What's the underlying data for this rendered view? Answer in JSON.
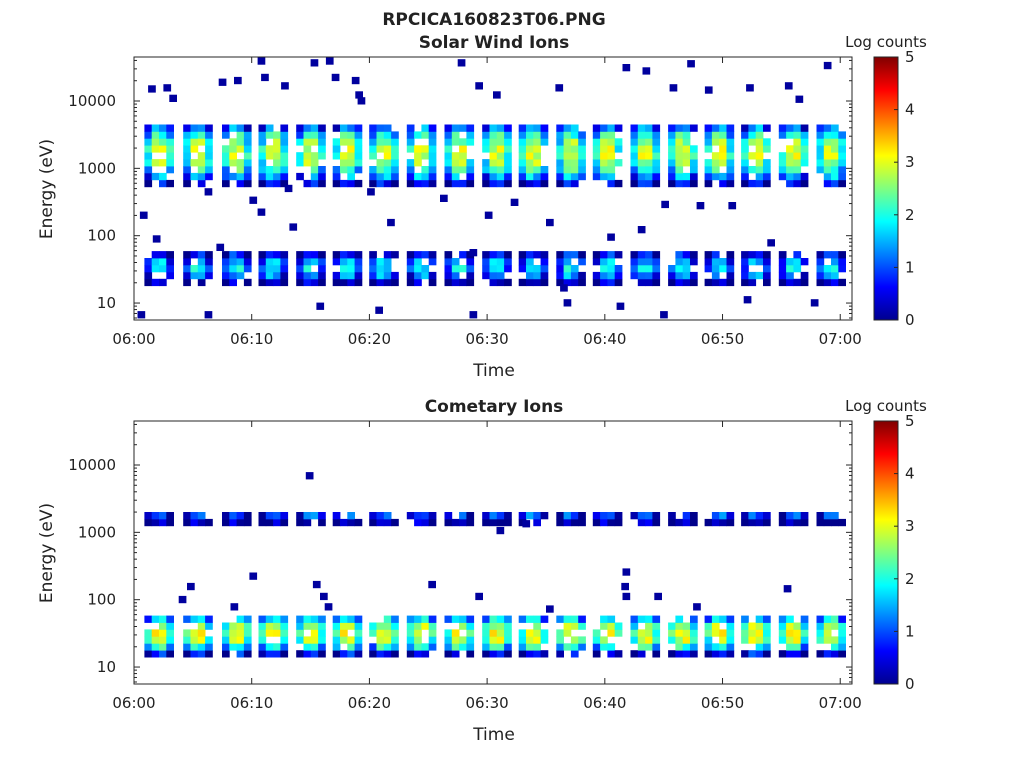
{
  "figure": {
    "main_title": "RPCICA160823T06.PNG",
    "colorbar_label": "Log counts",
    "colorbar_ticks": [
      "0",
      "1",
      "2",
      "3",
      "4",
      "5"
    ]
  },
  "chart_data": [
    {
      "type": "heatmap",
      "title": "Solar Wind Ions",
      "xlabel": "Time",
      "ylabel": "Energy (eV)",
      "x_tick_labels": [
        "06:00",
        "06:10",
        "06:20",
        "06:30",
        "06:40",
        "06:50",
        "07:00"
      ],
      "y_tick_labels": [
        "10",
        "100",
        "1000",
        "10000"
      ],
      "x_range_minutes": [
        0,
        61
      ],
      "y_range_ev": [
        5.6,
        45000
      ],
      "y_scale": "log",
      "color_range_log_counts": [
        0,
        5
      ],
      "colormap": "jet",
      "sweep_times_min": [
        1.5,
        4.8,
        8.1,
        11.2,
        14.4,
        17.5,
        20.6,
        23.8,
        27.0,
        30.2,
        33.3,
        36.5,
        39.6,
        42.8,
        46.0,
        49.1,
        52.2,
        55.4,
        58.6
      ],
      "bands": [
        {
          "name": "solar-wind-peak",
          "e_center_ev": 1500,
          "e_half_decades": 0.45,
          "peak_log_counts": 2.9
        },
        {
          "name": "low-energy",
          "e_center_ev": 30,
          "e_half_decades": 0.22,
          "peak_log_counts": 1.8
        }
      ],
      "scatter_cells": [
        {
          "t": 1.2,
          "e": 13500
        },
        {
          "t": 2.5,
          "e": 14000
        },
        {
          "t": 3.0,
          "e": 9800
        },
        {
          "t": 7.2,
          "e": 17000
        },
        {
          "t": 8.5,
          "e": 18000
        },
        {
          "t": 10.5,
          "e": 35000
        },
        {
          "t": 10.8,
          "e": 20000
        },
        {
          "t": 12.5,
          "e": 15000
        },
        {
          "t": 13.0,
          "e": 40000
        },
        {
          "t": 15.0,
          "e": 33000
        },
        {
          "t": 16.3,
          "e": 35000
        },
        {
          "t": 16.8,
          "e": 20000
        },
        {
          "t": 18.5,
          "e": 18000
        },
        {
          "t": 18.8,
          "e": 11000
        },
        {
          "t": 19.0,
          "e": 9000
        },
        {
          "t": 22.0,
          "e": 40000
        },
        {
          "t": 24.5,
          "e": 38000
        },
        {
          "t": 27.5,
          "e": 33000
        },
        {
          "t": 29.0,
          "e": 15000
        },
        {
          "t": 30.5,
          "e": 11000
        },
        {
          "t": 31.5,
          "e": 40000
        },
        {
          "t": 35.8,
          "e": 14000
        },
        {
          "t": 37.5,
          "e": 40000
        },
        {
          "t": 41.5,
          "e": 28000
        },
        {
          "t": 43.2,
          "e": 25000
        },
        {
          "t": 44.2,
          "e": 40000
        },
        {
          "t": 45.5,
          "e": 14000
        },
        {
          "t": 47.0,
          "e": 32000
        },
        {
          "t": 48.5,
          "e": 13000
        },
        {
          "t": 52.0,
          "e": 14000
        },
        {
          "t": 55.3,
          "e": 15000
        },
        {
          "t": 56.2,
          "e": 9500
        },
        {
          "t": 58.6,
          "e": 30000
        },
        {
          "t": 61.0,
          "e": 6000
        },
        {
          "t": 0.5,
          "e": 180
        },
        {
          "t": 1.6,
          "e": 80
        },
        {
          "t": 6.0,
          "e": 400
        },
        {
          "t": 7.0,
          "e": 60
        },
        {
          "t": 9.8,
          "e": 300
        },
        {
          "t": 10.5,
          "e": 200
        },
        {
          "t": 12.8,
          "e": 450
        },
        {
          "t": 13.2,
          "e": 120
        },
        {
          "t": 19.8,
          "e": 400
        },
        {
          "t": 21.5,
          "e": 140
        },
        {
          "t": 26.0,
          "e": 320
        },
        {
          "t": 28.5,
          "e": 50
        },
        {
          "t": 29.8,
          "e": 180
        },
        {
          "t": 32.0,
          "e": 280
        },
        {
          "t": 35.0,
          "e": 140
        },
        {
          "t": 40.2,
          "e": 85
        },
        {
          "t": 42.8,
          "e": 110
        },
        {
          "t": 44.8,
          "e": 260
        },
        {
          "t": 47.8,
          "e": 250
        },
        {
          "t": 50.5,
          "e": 250
        },
        {
          "t": 53.8,
          "e": 70
        },
        {
          "t": 15.5,
          "e": 8
        },
        {
          "t": 20.5,
          "e": 7
        },
        {
          "t": 36.5,
          "e": 9
        },
        {
          "t": 41.0,
          "e": 8
        },
        {
          "t": 51.8,
          "e": 10
        },
        {
          "t": 57.5,
          "e": 9
        },
        {
          "t": 6.0,
          "e": 6
        },
        {
          "t": 0.3,
          "e": 6
        },
        {
          "t": 28.5,
          "e": 6
        },
        {
          "t": 44.7,
          "e": 6
        },
        {
          "t": 36.2,
          "e": 15
        }
      ]
    },
    {
      "type": "heatmap",
      "title": "Cometary Ions",
      "xlabel": "Time",
      "ylabel": "Energy (eV)",
      "x_tick_labels": [
        "06:00",
        "06:10",
        "06:20",
        "06:30",
        "06:40",
        "06:50",
        "07:00"
      ],
      "y_tick_labels": [
        "10",
        "100",
        "1000",
        "10000"
      ],
      "x_range_minutes": [
        0,
        61
      ],
      "y_range_ev": [
        5.6,
        45000
      ],
      "y_scale": "log",
      "color_range_log_counts": [
        0,
        5
      ],
      "colormap": "jet",
      "sweep_times_min": [
        1.5,
        4.8,
        8.1,
        11.2,
        14.4,
        17.5,
        20.6,
        23.8,
        27.0,
        30.2,
        33.3,
        36.5,
        39.6,
        42.8,
        46.0,
        49.1,
        52.2,
        55.4,
        58.6
      ],
      "bands": [
        {
          "name": "cometary-peak",
          "e_center_ev": 28,
          "e_half_decades": 0.3,
          "peak_log_counts": 3.1
        },
        {
          "name": "high-energy",
          "e_center_ev": 1500,
          "e_half_decades": 0.08,
          "peak_log_counts": 1.2
        }
      ],
      "scatter_cells": [
        {
          "t": 14.6,
          "e": 6200
        },
        {
          "t": 9.8,
          "e": 200
        },
        {
          "t": 4.5,
          "e": 140
        },
        {
          "t": 3.8,
          "e": 90
        },
        {
          "t": 8.2,
          "e": 70
        },
        {
          "t": 15.2,
          "e": 150
        },
        {
          "t": 15.8,
          "e": 100
        },
        {
          "t": 16.2,
          "e": 70
        },
        {
          "t": 25.0,
          "e": 150
        },
        {
          "t": 29.0,
          "e": 100
        },
        {
          "t": 35.0,
          "e": 65
        },
        {
          "t": 41.5,
          "e": 230
        },
        {
          "t": 41.4,
          "e": 140
        },
        {
          "t": 41.5,
          "e": 100
        },
        {
          "t": 44.2,
          "e": 100
        },
        {
          "t": 47.5,
          "e": 70
        },
        {
          "t": 55.2,
          "e": 130
        },
        {
          "t": 33.0,
          "e": 1200
        },
        {
          "t": 30.8,
          "e": 950
        }
      ]
    }
  ]
}
